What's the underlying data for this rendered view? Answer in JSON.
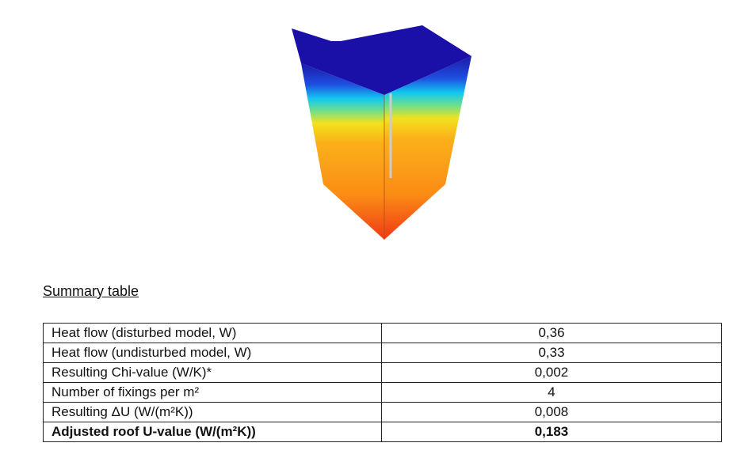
{
  "heading": "Summary table",
  "table": {
    "rows": [
      [
        "Heat flow (disturbed model, W)",
        "0,36"
      ],
      [
        "Heat flow (undisturbed model, W)",
        "0,33"
      ],
      [
        "Resulting Chi-value (W/K)*",
        "0,002"
      ],
      [
        "Number of fixings per m²",
        "4"
      ],
      [
        "Resulting ΔU (W/(m²K))",
        "0,008"
      ],
      [
        "Adjusted roof U-value (W/(m²K))",
        "0,183"
      ]
    ]
  }
}
